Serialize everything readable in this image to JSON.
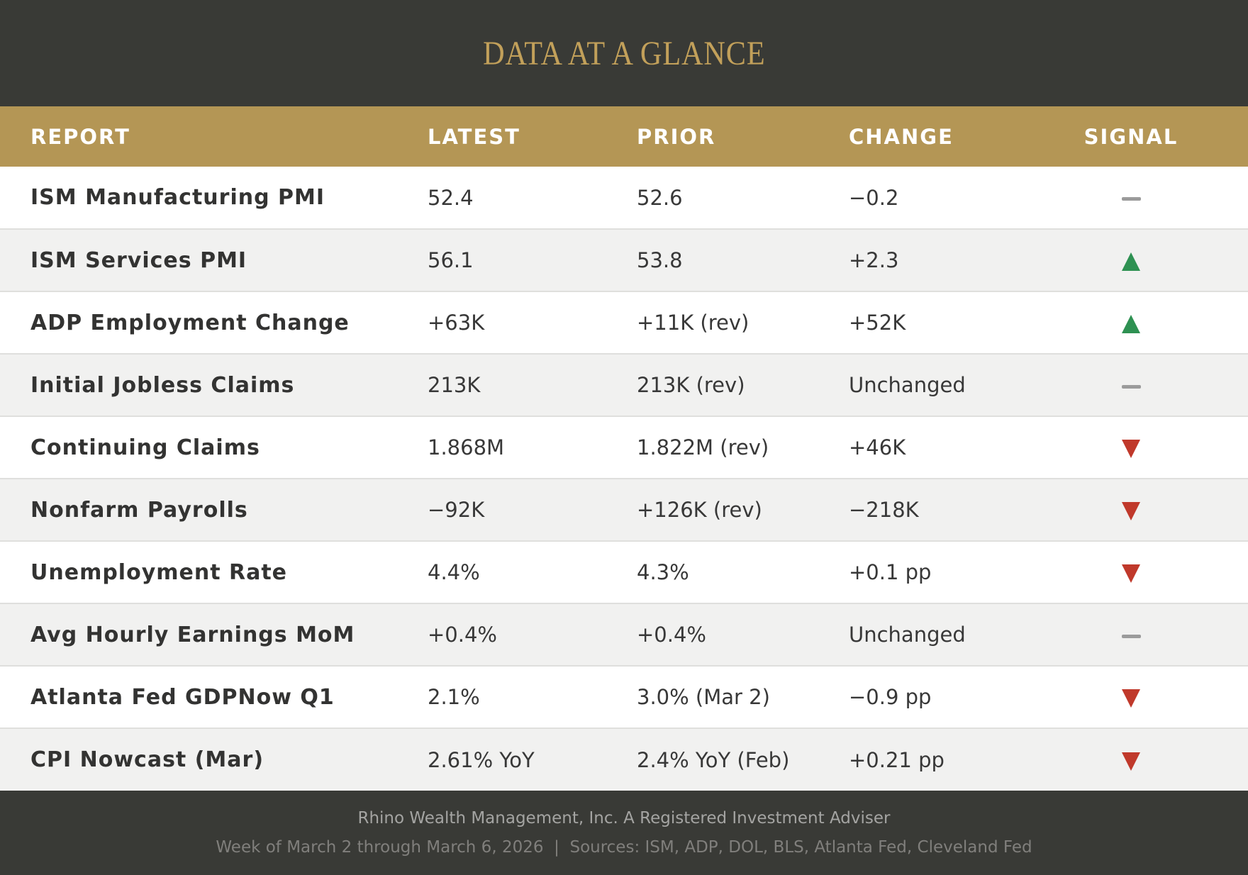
{
  "title": "DATA AT A GLANCE",
  "colors": {
    "banner_background": "#393a36",
    "title_gold": "#c2a05a",
    "header_gold": "#b49655",
    "row_alt": "#f1f1f0",
    "signal_up_green": "#2e9152",
    "signal_down_red": "#c0392b",
    "signal_flat_gray": "#9b9b9b"
  },
  "chart_data": {
    "type": "table",
    "title": "DATA AT A GLANCE",
    "columns": [
      "REPORT",
      "LATEST",
      "PRIOR",
      "CHANGE",
      "SIGNAL"
    ],
    "rows": [
      {
        "report": "ISM Manufacturing PMI",
        "latest": "52.4",
        "prior": "52.6",
        "change": "−0.2",
        "signal": "flat"
      },
      {
        "report": "ISM Services PMI",
        "latest": "56.1",
        "prior": "53.8",
        "change": "+2.3",
        "signal": "up"
      },
      {
        "report": "ADP Employment Change",
        "latest": "+63K",
        "prior": "+11K (rev)",
        "change": "+52K",
        "signal": "up"
      },
      {
        "report": "Initial Jobless Claims",
        "latest": "213K",
        "prior": "213K (rev)",
        "change": "Unchanged",
        "signal": "flat"
      },
      {
        "report": "Continuing Claims",
        "latest": "1.868M",
        "prior": "1.822M (rev)",
        "change": "+46K",
        "signal": "down"
      },
      {
        "report": "Nonfarm Payrolls",
        "latest": "−92K",
        "prior": "+126K (rev)",
        "change": "−218K",
        "signal": "down"
      },
      {
        "report": "Unemployment Rate",
        "latest": "4.4%",
        "prior": "4.3%",
        "change": "+0.1 pp",
        "signal": "down"
      },
      {
        "report": "Avg Hourly Earnings MoM",
        "latest": "+0.4%",
        "prior": "+0.4%",
        "change": "Unchanged",
        "signal": "flat"
      },
      {
        "report": "Atlanta Fed GDPNow Q1",
        "latest": "2.1%",
        "prior": "3.0% (Mar 2)",
        "change": "−0.9 pp",
        "signal": "down"
      },
      {
        "report": "CPI Nowcast (Mar)",
        "latest": "2.61% YoY",
        "prior": "2.4% YoY (Feb)",
        "change": "+0.21 pp",
        "signal": "down"
      }
    ]
  },
  "footer": {
    "line1": "Rhino Wealth Management, Inc. A Registered Investment Adviser",
    "line2": "Week of March 2 through March 6, 2026  |  Sources: ISM, ADP, DOL, BLS, Atlanta Fed, Cleveland Fed"
  }
}
